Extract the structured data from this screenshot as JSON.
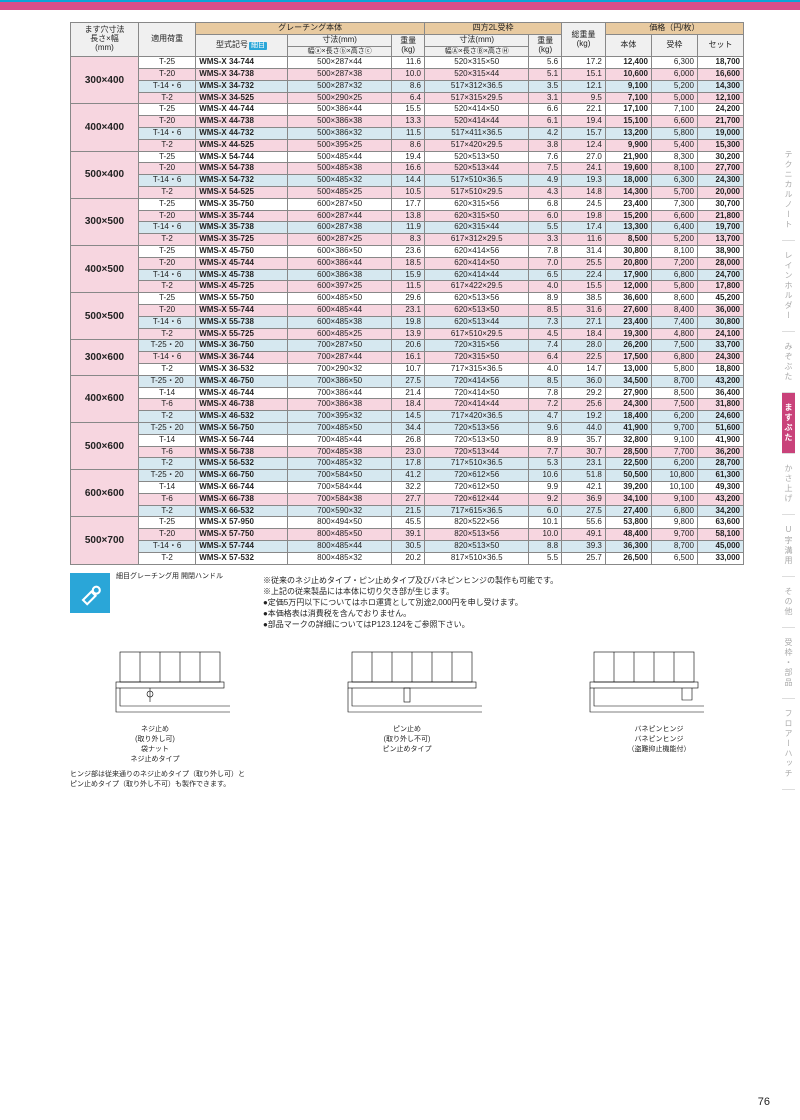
{
  "page_number": "76",
  "top_accent_color": "#d94f8a",
  "header": {
    "c1": "ます穴寸法\n長さ×幅\n(mm)",
    "c2": "適用荷重",
    "g_body": "グレーチング本体",
    "g_frame": "四方2L受枠",
    "g_price": "価格（円/枚）",
    "model": "型式記号",
    "badge": "細目",
    "dim_body": "寸法(mm)",
    "dim_body_sub": "幅ⓐ×長さⓑ×高さⓒ",
    "wt_body": "重量\n(kg)",
    "dim_frame": "寸法(mm)",
    "dim_frame_sub": "幅Ⓐ×長さⒷ×高さⒽ",
    "wt_frame": "重量\n(kg)",
    "total_wt": "総重量\n(kg)",
    "p_body": "本体",
    "p_frame": "受枠",
    "p_set": "セット"
  },
  "groups": [
    {
      "size": "300×400",
      "rows": [
        {
          "load": "T-25",
          "model": "WMS-X 34-744",
          "bd": "500×287×44",
          "bw": "11.6",
          "fd": "520×315×50",
          "fw": "5.6",
          "tw": "17.2",
          "pb": "12,400",
          "pf": "6,300",
          "ps": "18,700",
          "cls": ""
        },
        {
          "load": "T-20",
          "model": "WMS-X 34-738",
          "bd": "500×287×38",
          "bw": "10.0",
          "fd": "520×315×44",
          "fw": "5.1",
          "tw": "15.1",
          "pb": "10,600",
          "pf": "6,000",
          "ps": "16,600",
          "cls": "bg-pink"
        },
        {
          "load": "T-14・6",
          "model": "WMS-X 34-732",
          "bd": "500×287×32",
          "bw": "8.6",
          "fd": "517×312×36.5",
          "fw": "3.5",
          "tw": "12.1",
          "pb": "9,100",
          "pf": "5,200",
          "ps": "14,300",
          "cls": "bg-blue"
        },
        {
          "load": "T-2",
          "model": "WMS-X 34-525",
          "bd": "500×290×25",
          "bw": "6.4",
          "fd": "517×315×29.5",
          "fw": "3.1",
          "tw": "9.5",
          "pb": "7,100",
          "pf": "5,000",
          "ps": "12,100",
          "cls": "bg-pink"
        }
      ]
    },
    {
      "size": "400×400",
      "rows": [
        {
          "load": "T-25",
          "model": "WMS-X 44-744",
          "bd": "500×386×44",
          "bw": "15.5",
          "fd": "520×414×50",
          "fw": "6.6",
          "tw": "22.1",
          "pb": "17,100",
          "pf": "7,100",
          "ps": "24,200",
          "cls": ""
        },
        {
          "load": "T-20",
          "model": "WMS-X 44-738",
          "bd": "500×386×38",
          "bw": "13.3",
          "fd": "520×414×44",
          "fw": "6.1",
          "tw": "19.4",
          "pb": "15,100",
          "pf": "6,600",
          "ps": "21,700",
          "cls": "bg-pink"
        },
        {
          "load": "T-14・6",
          "model": "WMS-X 44-732",
          "bd": "500×386×32",
          "bw": "11.5",
          "fd": "517×411×36.5",
          "fw": "4.2",
          "tw": "15.7",
          "pb": "13,200",
          "pf": "5,800",
          "ps": "19,000",
          "cls": "bg-blue"
        },
        {
          "load": "T-2",
          "model": "WMS-X 44-525",
          "bd": "500×395×25",
          "bw": "8.6",
          "fd": "517×420×29.5",
          "fw": "3.8",
          "tw": "12.4",
          "pb": "9,900",
          "pf": "5,400",
          "ps": "15,300",
          "cls": "bg-pink"
        }
      ]
    },
    {
      "size": "500×400",
      "rows": [
        {
          "load": "T-25",
          "model": "WMS-X 54-744",
          "bd": "500×485×44",
          "bw": "19.4",
          "fd": "520×513×50",
          "fw": "7.6",
          "tw": "27.0",
          "pb": "21,900",
          "pf": "8,300",
          "ps": "30,200",
          "cls": ""
        },
        {
          "load": "T-20",
          "model": "WMS-X 54-738",
          "bd": "500×485×38",
          "bw": "16.6",
          "fd": "520×513×44",
          "fw": "7.5",
          "tw": "24.1",
          "pb": "19,600",
          "pf": "8,100",
          "ps": "27,700",
          "cls": "bg-pink"
        },
        {
          "load": "T-14・6",
          "model": "WMS-X 54-732",
          "bd": "500×485×32",
          "bw": "14.4",
          "fd": "517×510×36.5",
          "fw": "4.9",
          "tw": "19.3",
          "pb": "18,000",
          "pf": "6,300",
          "ps": "24,300",
          "cls": "bg-blue"
        },
        {
          "load": "T-2",
          "model": "WMS-X 54-525",
          "bd": "500×485×25",
          "bw": "10.5",
          "fd": "517×510×29.5",
          "fw": "4.3",
          "tw": "14.8",
          "pb": "14,300",
          "pf": "5,700",
          "ps": "20,000",
          "cls": "bg-pink"
        }
      ]
    },
    {
      "size": "300×500",
      "rows": [
        {
          "load": "T-25",
          "model": "WMS-X 35-750",
          "bd": "600×287×50",
          "bw": "17.7",
          "fd": "620×315×56",
          "fw": "6.8",
          "tw": "24.5",
          "pb": "23,400",
          "pf": "7,300",
          "ps": "30,700",
          "cls": ""
        },
        {
          "load": "T-20",
          "model": "WMS-X 35-744",
          "bd": "600×287×44",
          "bw": "13.8",
          "fd": "620×315×50",
          "fw": "6.0",
          "tw": "19.8",
          "pb": "15,200",
          "pf": "6,600",
          "ps": "21,800",
          "cls": "bg-pink"
        },
        {
          "load": "T-14・6",
          "model": "WMS-X 35-738",
          "bd": "600×287×38",
          "bw": "11.9",
          "fd": "620×315×44",
          "fw": "5.5",
          "tw": "17.4",
          "pb": "13,300",
          "pf": "6,400",
          "ps": "19,700",
          "cls": "bg-blue"
        },
        {
          "load": "T-2",
          "model": "WMS-X 35-725",
          "bd": "600×287×25",
          "bw": "8.3",
          "fd": "617×312×29.5",
          "fw": "3.3",
          "tw": "11.6",
          "pb": "8,500",
          "pf": "5,200",
          "ps": "13,700",
          "cls": "bg-pink"
        }
      ]
    },
    {
      "size": "400×500",
      "rows": [
        {
          "load": "T-25",
          "model": "WMS-X 45-750",
          "bd": "600×386×50",
          "bw": "23.6",
          "fd": "620×414×56",
          "fw": "7.8",
          "tw": "31.4",
          "pb": "30,800",
          "pf": "8,100",
          "ps": "38,900",
          "cls": ""
        },
        {
          "load": "T-20",
          "model": "WMS-X 45-744",
          "bd": "600×386×44",
          "bw": "18.5",
          "fd": "620×414×50",
          "fw": "7.0",
          "tw": "25.5",
          "pb": "20,800",
          "pf": "7,200",
          "ps": "28,000",
          "cls": "bg-pink"
        },
        {
          "load": "T-14・6",
          "model": "WMS-X 45-738",
          "bd": "600×386×38",
          "bw": "15.9",
          "fd": "620×414×44",
          "fw": "6.5",
          "tw": "22.4",
          "pb": "17,900",
          "pf": "6,800",
          "ps": "24,700",
          "cls": "bg-blue"
        },
        {
          "load": "T-2",
          "model": "WMS-X 45-725",
          "bd": "600×397×25",
          "bw": "11.5",
          "fd": "617×422×29.5",
          "fw": "4.0",
          "tw": "15.5",
          "pb": "12,000",
          "pf": "5,800",
          "ps": "17,800",
          "cls": "bg-pink"
        }
      ]
    },
    {
      "size": "500×500",
      "rows": [
        {
          "load": "T-25",
          "model": "WMS-X 55-750",
          "bd": "600×485×50",
          "bw": "29.6",
          "fd": "620×513×56",
          "fw": "8.9",
          "tw": "38.5",
          "pb": "36,600",
          "pf": "8,600",
          "ps": "45,200",
          "cls": ""
        },
        {
          "load": "T-20",
          "model": "WMS-X 55-744",
          "bd": "600×485×44",
          "bw": "23.1",
          "fd": "620×513×50",
          "fw": "8.5",
          "tw": "31.6",
          "pb": "27,600",
          "pf": "8,400",
          "ps": "36,000",
          "cls": "bg-pink"
        },
        {
          "load": "T-14・6",
          "model": "WMS-X 55-738",
          "bd": "600×485×38",
          "bw": "19.8",
          "fd": "620×513×44",
          "fw": "7.3",
          "tw": "27.1",
          "pb": "23,400",
          "pf": "7,400",
          "ps": "30,800",
          "cls": "bg-blue"
        },
        {
          "load": "T-2",
          "model": "WMS-X 55-725",
          "bd": "600×485×25",
          "bw": "13.9",
          "fd": "617×510×29.5",
          "fw": "4.5",
          "tw": "18.4",
          "pb": "19,300",
          "pf": "4,800",
          "ps": "24,100",
          "cls": "bg-pink"
        }
      ]
    },
    {
      "size": "300×600",
      "rows": [
        {
          "load": "T-25・20",
          "model": "WMS-X 36-750",
          "bd": "700×287×50",
          "bw": "20.6",
          "fd": "720×315×56",
          "fw": "7.4",
          "tw": "28.0",
          "pb": "26,200",
          "pf": "7,500",
          "ps": "33,700",
          "cls": "bg-blue"
        },
        {
          "load": "T-14・6",
          "model": "WMS-X 36-744",
          "bd": "700×287×44",
          "bw": "16.1",
          "fd": "720×315×50",
          "fw": "6.4",
          "tw": "22.5",
          "pb": "17,500",
          "pf": "6,800",
          "ps": "24,300",
          "cls": "bg-pink"
        },
        {
          "load": "T-2",
          "model": "WMS-X 36-532",
          "bd": "700×290×32",
          "bw": "10.7",
          "fd": "717×315×36.5",
          "fw": "4.0",
          "tw": "14.7",
          "pb": "13,000",
          "pf": "5,800",
          "ps": "18,800",
          "cls": ""
        }
      ]
    },
    {
      "size": "400×600",
      "rows": [
        {
          "load": "T-25・20",
          "model": "WMS-X 46-750",
          "bd": "700×386×50",
          "bw": "27.5",
          "fd": "720×414×56",
          "fw": "8.5",
          "tw": "36.0",
          "pb": "34,500",
          "pf": "8,700",
          "ps": "43,200",
          "cls": "bg-blue"
        },
        {
          "load": "T-14",
          "model": "WMS-X 46-744",
          "bd": "700×386×44",
          "bw": "21.4",
          "fd": "720×414×50",
          "fw": "7.8",
          "tw": "29.2",
          "pb": "27,900",
          "pf": "8,500",
          "ps": "36,400",
          "cls": ""
        },
        {
          "load": "T-6",
          "model": "WMS-X 46-738",
          "bd": "700×386×38",
          "bw": "18.4",
          "fd": "720×414×44",
          "fw": "7.2",
          "tw": "25.6",
          "pb": "24,300",
          "pf": "7,500",
          "ps": "31,800",
          "cls": "bg-pink"
        },
        {
          "load": "T-2",
          "model": "WMS-X 46-532",
          "bd": "700×395×32",
          "bw": "14.5",
          "fd": "717×420×36.5",
          "fw": "4.7",
          "tw": "19.2",
          "pb": "18,400",
          "pf": "6,200",
          "ps": "24,600",
          "cls": "bg-blue"
        }
      ]
    },
    {
      "size": "500×600",
      "rows": [
        {
          "load": "T-25・20",
          "model": "WMS-X 56-750",
          "bd": "700×485×50",
          "bw": "34.4",
          "fd": "720×513×56",
          "fw": "9.6",
          "tw": "44.0",
          "pb": "41,900",
          "pf": "9,700",
          "ps": "51,600",
          "cls": "bg-blue"
        },
        {
          "load": "T-14",
          "model": "WMS-X 56-744",
          "bd": "700×485×44",
          "bw": "26.8",
          "fd": "720×513×50",
          "fw": "8.9",
          "tw": "35.7",
          "pb": "32,800",
          "pf": "9,100",
          "ps": "41,900",
          "cls": ""
        },
        {
          "load": "T-6",
          "model": "WMS-X 56-738",
          "bd": "700×485×38",
          "bw": "23.0",
          "fd": "720×513×44",
          "fw": "7.7",
          "tw": "30.7",
          "pb": "28,500",
          "pf": "7,700",
          "ps": "36,200",
          "cls": "bg-pink"
        },
        {
          "load": "T-2",
          "model": "WMS-X 56-532",
          "bd": "700×485×32",
          "bw": "17.8",
          "fd": "717×510×36.5",
          "fw": "5.3",
          "tw": "23.1",
          "pb": "22,500",
          "pf": "6,200",
          "ps": "28,700",
          "cls": "bg-blue"
        }
      ]
    },
    {
      "size": "600×600",
      "rows": [
        {
          "load": "T-25・20",
          "model": "WMS-X 66-750",
          "bd": "700×584×50",
          "bw": "41.2",
          "fd": "720×612×56",
          "fw": "10.6",
          "tw": "51.8",
          "pb": "50,500",
          "pf": "10,800",
          "ps": "61,300",
          "cls": "bg-blue"
        },
        {
          "load": "T-14",
          "model": "WMS-X 66-744",
          "bd": "700×584×44",
          "bw": "32.2",
          "fd": "720×612×50",
          "fw": "9.9",
          "tw": "42.1",
          "pb": "39,200",
          "pf": "10,100",
          "ps": "49,300",
          "cls": ""
        },
        {
          "load": "T-6",
          "model": "WMS-X 66-738",
          "bd": "700×584×38",
          "bw": "27.7",
          "fd": "720×612×44",
          "fw": "9.2",
          "tw": "36.9",
          "pb": "34,100",
          "pf": "9,100",
          "ps": "43,200",
          "cls": "bg-pink"
        },
        {
          "load": "T-2",
          "model": "WMS-X 66-532",
          "bd": "700×590×32",
          "bw": "21.5",
          "fd": "717×615×36.5",
          "fw": "6.0",
          "tw": "27.5",
          "pb": "27,400",
          "pf": "6,800",
          "ps": "34,200",
          "cls": "bg-blue"
        }
      ]
    },
    {
      "size": "500×700",
      "rows": [
        {
          "load": "T-25",
          "model": "WMS-X 57-950",
          "bd": "800×494×50",
          "bw": "45.5",
          "fd": "820×522×56",
          "fw": "10.1",
          "tw": "55.6",
          "pb": "53,800",
          "pf": "9,800",
          "ps": "63,600",
          "cls": ""
        },
        {
          "load": "T-20",
          "model": "WMS-X 57-750",
          "bd": "800×485×50",
          "bw": "39.1",
          "fd": "820×513×56",
          "fw": "10.0",
          "tw": "49.1",
          "pb": "48,400",
          "pf": "9,700",
          "ps": "58,100",
          "cls": "bg-pink"
        },
        {
          "load": "T-14・6",
          "model": "WMS-X 57-744",
          "bd": "800×485×44",
          "bw": "30.5",
          "fd": "820×513×50",
          "fw": "8.8",
          "tw": "39.3",
          "pb": "36,300",
          "pf": "8,700",
          "ps": "45,000",
          "cls": "bg-blue"
        },
        {
          "load": "T-2",
          "model": "WMS-X 57-532",
          "bd": "800×485×32",
          "bw": "20.2",
          "fd": "817×510×36.5",
          "fw": "5.5",
          "tw": "25.7",
          "pb": "26,500",
          "pf": "6,500",
          "ps": "33,000",
          "cls": ""
        }
      ]
    }
  ],
  "notes": [
    "※従来のネジ止めタイプ・ピン止めタイプ及びバネピンヒンジの製作も可能です。",
    "※上記の従来製品には本体に切り欠き部が生じます。",
    "●定価5万円以下についてはホロ運賃として別途2,000円を申し受けます。",
    "●本価格表は消費税を含んでおりません。",
    "●部品マークの詳細についてはP123.124をご参照下さい。"
  ],
  "handle_caption": "細目グレーチング用\n開閉ハンドル",
  "diagrams": {
    "d1_labels": [
      "ネジ止め",
      "(取り外し可)",
      "袋ナット"
    ],
    "d1_title": "ネジ止めタイプ",
    "d2_labels": [
      "ピン止め",
      "(取り外し不可)"
    ],
    "d2_title": "ピン止めタイプ",
    "d3_labels": [
      "バネピンヒンジ"
    ],
    "d3_title": "バネピンヒンジ\n（盗難抑止機能付）",
    "footnote": "ヒンジ部は従来通りのネジ止めタイプ（取り外し可）と\nピン止めタイプ（取り外し不可）も製作できます。"
  },
  "side_tabs": [
    {
      "t": "テクニカルノート",
      "active": false
    },
    {
      "t": "レインホルダー",
      "active": false
    },
    {
      "t": "みぞぶた",
      "active": false
    },
    {
      "t": "ますぶた",
      "active": true
    },
    {
      "t": "かさ上げ",
      "active": false
    },
    {
      "t": "U字溝用",
      "active": false
    },
    {
      "t": "その他",
      "active": false
    },
    {
      "t": "受枠・部品",
      "active": false
    },
    {
      "t": "フロアーハッチ",
      "active": false
    }
  ]
}
